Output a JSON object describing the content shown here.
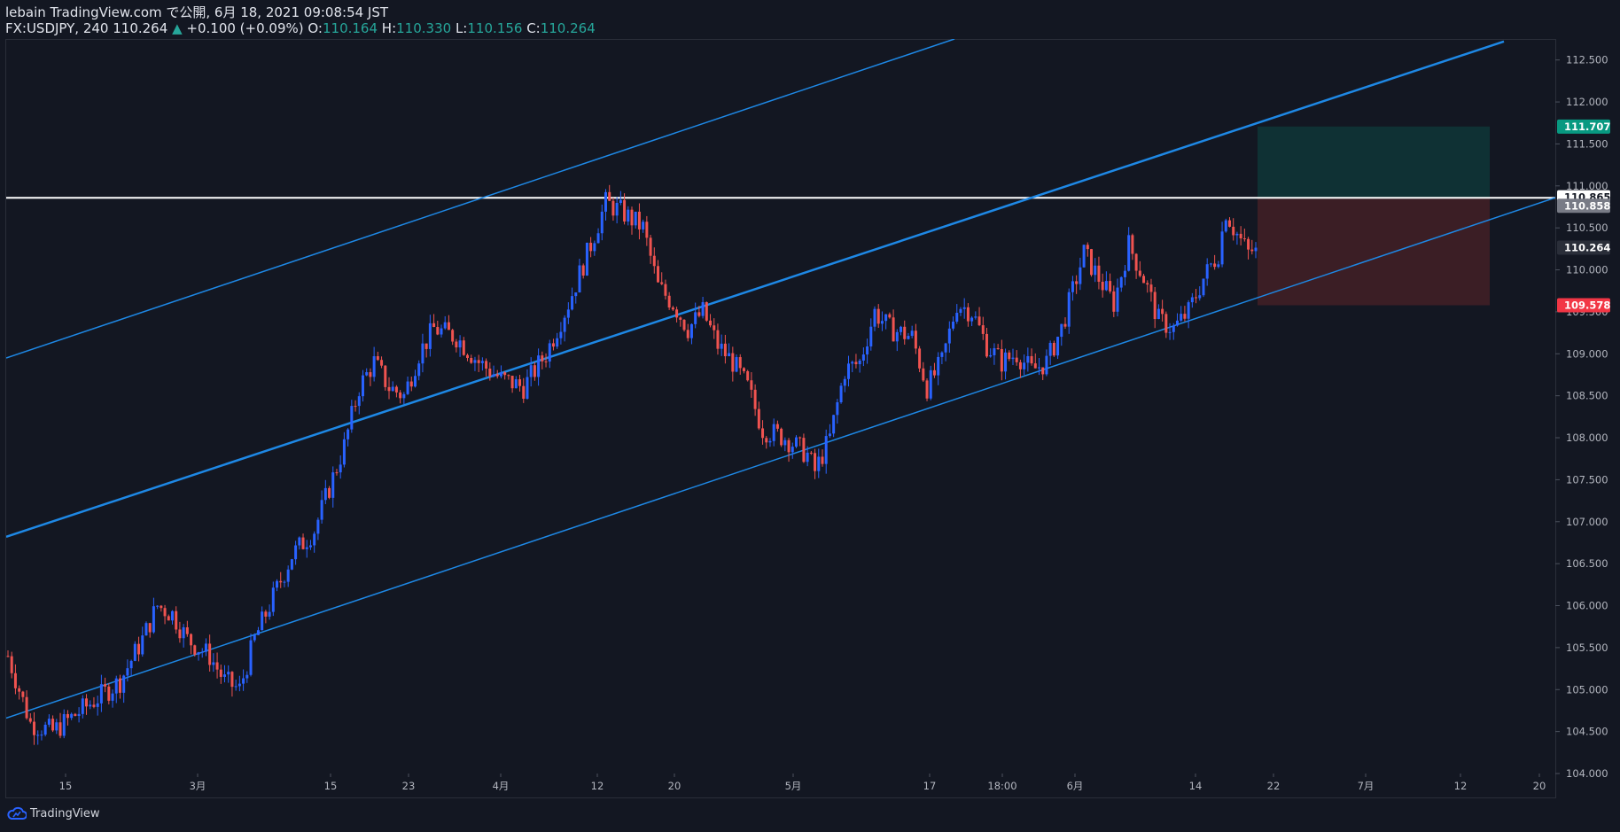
{
  "header": {
    "publisher": "lebain TradingView.com で公開, 6月 18, 2021 09:08:54 JST",
    "symbol_line": "FX:USDJPY, 240 110.264",
    "change_arrow": "▲",
    "change": "+0.100 (+0.09%)",
    "o_label": "O:",
    "o_value": "110.164",
    "h_label": "H:",
    "h_value": "110.330",
    "l_label": "L:",
    "l_value": "110.156",
    "c_label": "C:",
    "c_value": "110.264"
  },
  "footer": {
    "brand": "TradingView"
  },
  "colors": {
    "background": "#131722",
    "up": "#2962ff",
    "down": "#ef5350",
    "channel": "#1e88e5",
    "resistance": "#ffffff",
    "target_zone": "#0f3436",
    "stop_zone": "#3d1f26",
    "target_label": "#089981",
    "stop_label": "#f23645"
  },
  "chart_data": {
    "type": "candlestick",
    "symbol": "FX:USDJPY",
    "interval": "240",
    "ylim": [
      104.0,
      112.75
    ],
    "y_ticks": [
      "112.500",
      "112.000",
      "111.500",
      "111.000",
      "110.500",
      "110.000",
      "109.500",
      "109.000",
      "108.500",
      "108.000",
      "107.500",
      "107.000",
      "106.500",
      "106.000",
      "105.500",
      "105.000",
      "104.500",
      "104.000"
    ],
    "x_ticks": [
      "15",
      "3月",
      "15",
      "23",
      "4月",
      "12",
      "20",
      "5月",
      "17",
      "18:00",
      "6月",
      "14",
      "22",
      "7月",
      "12",
      "20"
    ],
    "price_labels": {
      "target": "111.707",
      "resistance_top": "110.865",
      "resistance": "110.858",
      "last": "110.264",
      "stop": "109.578"
    },
    "close_path": [
      [
        0,
        105.4
      ],
      [
        3,
        104.6
      ],
      [
        6,
        104.5
      ],
      [
        9,
        104.7
      ],
      [
        12,
        104.9
      ],
      [
        15,
        105.1
      ],
      [
        18,
        105.6
      ],
      [
        20,
        106.0
      ],
      [
        22,
        105.9
      ],
      [
        24,
        105.6
      ],
      [
        27,
        105.4
      ],
      [
        29,
        105.1
      ],
      [
        31,
        105.0
      ],
      [
        33,
        105.6
      ],
      [
        35,
        106.0
      ],
      [
        38,
        106.6
      ],
      [
        41,
        106.9
      ],
      [
        43,
        107.4
      ],
      [
        45,
        107.9
      ],
      [
        47,
        108.6
      ],
      [
        49,
        108.9
      ],
      [
        51,
        108.6
      ],
      [
        53,
        108.5
      ],
      [
        55,
        109.0
      ],
      [
        57,
        109.3
      ],
      [
        60,
        109.2
      ],
      [
        63,
        108.9
      ],
      [
        66,
        108.7
      ],
      [
        69,
        108.6
      ],
      [
        72,
        109.0
      ],
      [
        75,
        109.6
      ],
      [
        78,
        110.3
      ],
      [
        80,
        110.8
      ],
      [
        82,
        110.7
      ],
      [
        85,
        110.5
      ],
      [
        87,
        109.8
      ],
      [
        89,
        109.6
      ],
      [
        91,
        109.3
      ],
      [
        93,
        109.5
      ],
      [
        95,
        109.1
      ],
      [
        97,
        108.9
      ],
      [
        99,
        108.6
      ],
      [
        101,
        108.1
      ],
      [
        104,
        108.0
      ],
      [
        107,
        107.8
      ],
      [
        108,
        107.6
      ],
      [
        110,
        108.0
      ],
      [
        112,
        108.8
      ],
      [
        114,
        108.9
      ],
      [
        116,
        109.5
      ],
      [
        118,
        109.3
      ],
      [
        121,
        109.2
      ],
      [
        123,
        108.6
      ],
      [
        125,
        108.9
      ],
      [
        127,
        109.6
      ],
      [
        129,
        109.5
      ],
      [
        131,
        109.1
      ],
      [
        133,
        108.9
      ],
      [
        135,
        109.0
      ],
      [
        137,
        108.8
      ],
      [
        139,
        108.9
      ],
      [
        141,
        109.3
      ],
      [
        143,
        109.9
      ],
      [
        144,
        110.2
      ],
      [
        146,
        109.9
      ],
      [
        148,
        109.6
      ],
      [
        150,
        110.3
      ],
      [
        152,
        109.9
      ],
      [
        154,
        109.4
      ],
      [
        156,
        109.3
      ],
      [
        158,
        109.5
      ],
      [
        160,
        109.9
      ],
      [
        162,
        110.2
      ],
      [
        163,
        110.7
      ],
      [
        164,
        110.5
      ],
      [
        166,
        110.2
      ],
      [
        167,
        110.264
      ]
    ],
    "channel": {
      "lower": {
        "p1": [
          0,
          104.65
        ],
        "p2": [
          212,
          110.85
        ]
      },
      "middle": {
        "p1": [
          0,
          106.8
        ],
        "p2": [
          212,
          112.78
        ]
      },
      "upper": {
        "p1": [
          0,
          108.95
        ],
        "p2": [
          92,
          112.72
        ]
      }
    },
    "resistance_price": 110.858,
    "position": {
      "entry": 110.858,
      "target": 111.707,
      "stop": 109.578,
      "x_start": 168,
      "x_end": 193
    }
  }
}
